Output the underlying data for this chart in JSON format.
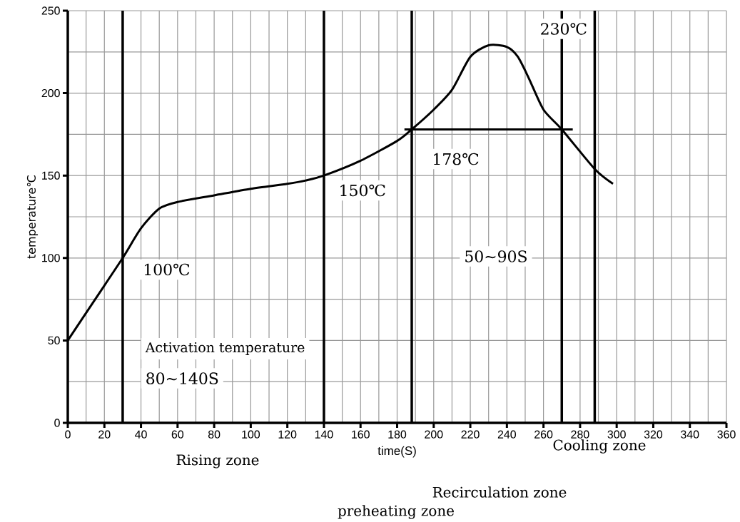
{
  "chart_data": {
    "type": "line",
    "xlabel": "time(S)",
    "ylabel": "temperature℃",
    "x": [
      0,
      15,
      30,
      40,
      50,
      60,
      80,
      100,
      120,
      130,
      140,
      160,
      180,
      188,
      200,
      210,
      220,
      230,
      240,
      246,
      252,
      260,
      270,
      288,
      298
    ],
    "series": [
      {
        "color": "#000000",
        "values": [
          50,
          75,
          100,
          118,
          130,
          134,
          138,
          142,
          145,
          147,
          150,
          159,
          171,
          178,
          190,
          202,
          222,
          229,
          228,
          222,
          209,
          190,
          178,
          154,
          145
        ]
      },
      {
        "x": [
          184,
          276
        ],
        "color": "#000000",
        "values": [
          178,
          178
        ]
      }
    ],
    "xlim": [
      0,
      360
    ],
    "ylim": [
      0,
      250
    ],
    "xticks": [
      0,
      20,
      40,
      60,
      80,
      100,
      120,
      140,
      160,
      180,
      200,
      220,
      240,
      260,
      280,
      300,
      320,
      340,
      360
    ],
    "yticks": [
      0,
      50,
      100,
      150,
      200,
      250
    ],
    "grid": true,
    "ref_lines": [
      {
        "axis": "x",
        "value": 30,
        "color": "#000000"
      },
      {
        "axis": "x",
        "value": 140,
        "color": "#000000"
      },
      {
        "axis": "x",
        "value": 188,
        "color": "#000000"
      },
      {
        "axis": "x",
        "value": 270,
        "color": "#000000"
      },
      {
        "axis": "x",
        "value": 288,
        "color": "#000000"
      }
    ],
    "annotations": [
      "100℃",
      "150℃",
      "178℃",
      "230℃",
      "50~90S",
      "Activation temperature",
      "80~140S",
      "Rising zone",
      "Cooling zone",
      "Recirculation zone",
      "preheating zone"
    ]
  }
}
